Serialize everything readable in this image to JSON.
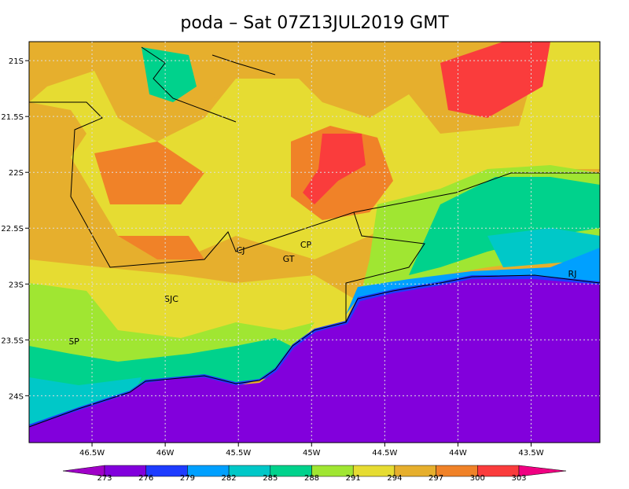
{
  "title": "poda – Sat 07Z13JUL2019 GMT",
  "lon_ticks": [
    {
      "value": -46.5,
      "label": "46.5W"
    },
    {
      "value": -46,
      "label": "46W"
    },
    {
      "value": -45.5,
      "label": "45.5W"
    },
    {
      "value": -45,
      "label": "45W"
    },
    {
      "value": -44.5,
      "label": "44.5W"
    },
    {
      "value": -44,
      "label": "44W"
    },
    {
      "value": -43.5,
      "label": "43.5W"
    }
  ],
  "lat_ticks": [
    {
      "value": -21,
      "label": "21S"
    },
    {
      "value": -21.5,
      "label": "21.5S"
    },
    {
      "value": -22,
      "label": "22S"
    },
    {
      "value": -22.5,
      "label": "22.5S"
    },
    {
      "value": -23,
      "label": "23S"
    },
    {
      "value": -23.5,
      "label": "23.5S"
    },
    {
      "value": -24,
      "label": "24S"
    }
  ],
  "places": [
    "CJ",
    "CP",
    "GT",
    "SJC",
    "SP",
    "RJ"
  ],
  "colorbar": {
    "levels": [
      273,
      276,
      279,
      282,
      285,
      288,
      291,
      294,
      297,
      300,
      303
    ],
    "colors": [
      "#a000c8",
      "#8200dc",
      "#1e3cff",
      "#00a0ff",
      "#00c8c8",
      "#00d28c",
      "#a0e632",
      "#e6dc32",
      "#e6af2d",
      "#f08228",
      "#fa3c3c",
      "#f00082"
    ]
  }
}
